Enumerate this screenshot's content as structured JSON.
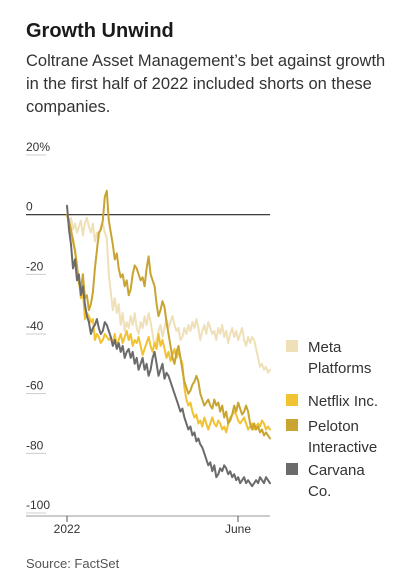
{
  "title": "Growth Unwind",
  "subtitle": "Coltrane Asset Management’s bet against growth in the first half of 2022 included shorts on these companies.",
  "source": "Source: FactSet",
  "chart_data": {
    "type": "line",
    "ylim": [
      -100,
      20
    ],
    "yticks": [
      20,
      0,
      -20,
      -40,
      -60,
      -80,
      -100
    ],
    "ytick_labels": [
      "20%",
      "0",
      "-20",
      "-40",
      "-60",
      "-80",
      "-100"
    ],
    "xtick_labels": [
      "2022",
      "June"
    ],
    "grid": false,
    "legend_position": "right",
    "series": [
      {
        "name": "Meta Platforms",
        "color": "#efe0b8",
        "legend_lines": [
          "Meta",
          "Platforms"
        ],
        "x": [
          0,
          2,
          4,
          6,
          8,
          10,
          12,
          14,
          16,
          18,
          20,
          22,
          24,
          26,
          28,
          30,
          32,
          34,
          36,
          38,
          40,
          42,
          44,
          46,
          48,
          50,
          52,
          54,
          56,
          58,
          60,
          62,
          64,
          66,
          68,
          70,
          72,
          74,
          76,
          78,
          80,
          82,
          84,
          86,
          88,
          90,
          92,
          94,
          96,
          98,
          100,
          102,
          104,
          106,
          108,
          110,
          112,
          114,
          116,
          118,
          120,
          122,
          124,
          126,
          128,
          130,
          132,
          134,
          136,
          138,
          140,
          142,
          144,
          146,
          148,
          150,
          152,
          154,
          156,
          158,
          160,
          162,
          164,
          166,
          168,
          170,
          172,
          174,
          176,
          178,
          180,
          182,
          184,
          186,
          188,
          190,
          192,
          194,
          196,
          198,
          200,
          202,
          204
        ],
        "y": [
          0,
          -2,
          -1,
          -5,
          -3,
          -6,
          -4,
          -2,
          -7,
          -3,
          -1,
          -4,
          -6,
          -3,
          -9,
          -6,
          -8,
          -4,
          -3,
          -6,
          -8,
          -20,
          -26,
          -32,
          -28,
          -33,
          -30,
          -37,
          -33,
          -39,
          -36,
          -38,
          -34,
          -37,
          -33,
          -38,
          -40,
          -36,
          -38,
          -34,
          -37,
          -33,
          -36,
          -40,
          -44,
          -42,
          -39,
          -37,
          -41,
          -38,
          -35,
          -38,
          -36,
          -34,
          -37,
          -39,
          -38,
          -42,
          -41,
          -38,
          -40,
          -37,
          -39,
          -36,
          -38,
          -35,
          -38,
          -42,
          -39,
          -37,
          -40,
          -36,
          -38,
          -40,
          -39,
          -42,
          -38,
          -40,
          -37,
          -41,
          -39,
          -43,
          -40,
          -38,
          -41,
          -39,
          -42,
          -40,
          -38,
          -42,
          -44,
          -41,
          -43,
          -41,
          -42,
          -45,
          -48,
          -51,
          -50,
          -52,
          -51,
          -53,
          -52
        ]
      },
      {
        "name": "Netflix Inc.",
        "color": "#f1c232",
        "legend_lines": [
          "Netflix Inc."
        ],
        "x": [
          0,
          2,
          4,
          6,
          8,
          10,
          12,
          14,
          16,
          18,
          20,
          22,
          24,
          26,
          28,
          30,
          32,
          34,
          36,
          38,
          40,
          42,
          44,
          46,
          48,
          50,
          52,
          54,
          56,
          58,
          60,
          62,
          64,
          66,
          68,
          70,
          72,
          74,
          76,
          78,
          80,
          82,
          84,
          86,
          88,
          90,
          92,
          94,
          96,
          98,
          100,
          102,
          104,
          106,
          108,
          110,
          112,
          114,
          116,
          118,
          120,
          122,
          124,
          126,
          128,
          130,
          132,
          134,
          136,
          138,
          140,
          142,
          144,
          146,
          148,
          150,
          152,
          154,
          156,
          158,
          160,
          162,
          164,
          166,
          168,
          170,
          172,
          174,
          176,
          178,
          180,
          182,
          184,
          186,
          188,
          190,
          192,
          194,
          196,
          198,
          200,
          202,
          204
        ],
        "y": [
          0,
          -3,
          -6,
          -8,
          -12,
          -18,
          -22,
          -28,
          -26,
          -35,
          -33,
          -34,
          -36,
          -35,
          -42,
          -40,
          -41,
          -43,
          -42,
          -40,
          -41,
          -42,
          -41,
          -43,
          -40,
          -44,
          -42,
          -40,
          -43,
          -41,
          -39,
          -42,
          -40,
          -44,
          -42,
          -43,
          -41,
          -44,
          -47,
          -45,
          -43,
          -41,
          -44,
          -46,
          -43,
          -45,
          -40,
          -44,
          -42,
          -45,
          -48,
          -46,
          -49,
          -47,
          -45,
          -48,
          -46,
          -48,
          -50,
          -58,
          -62,
          -64,
          -63,
          -66,
          -68,
          -67,
          -70,
          -69,
          -71,
          -68,
          -70,
          -72,
          -70,
          -68,
          -70,
          -71,
          -69,
          -70,
          -72,
          -71,
          -73,
          -70,
          -68,
          -67,
          -66,
          -67,
          -69,
          -70,
          -69,
          -68,
          -70,
          -72,
          -71,
          -70,
          -72,
          -71,
          -70,
          -71,
          -69,
          -70,
          -72,
          -71,
          -72
        ]
      },
      {
        "name": "Peloton Interactive",
        "color": "#c8a431",
        "legend_lines": [
          "Peloton",
          "Interactive"
        ],
        "x": [
          0,
          2,
          4,
          6,
          8,
          10,
          12,
          14,
          16,
          18,
          20,
          22,
          24,
          26,
          28,
          30,
          32,
          34,
          36,
          38,
          40,
          42,
          44,
          46,
          48,
          50,
          52,
          54,
          56,
          58,
          60,
          62,
          64,
          66,
          68,
          70,
          72,
          74,
          76,
          78,
          80,
          82,
          84,
          86,
          88,
          90,
          92,
          94,
          96,
          98,
          100,
          102,
          104,
          106,
          108,
          110,
          112,
          114,
          116,
          118,
          120,
          122,
          124,
          126,
          128,
          130,
          132,
          134,
          136,
          138,
          140,
          142,
          144,
          146,
          148,
          150,
          152,
          154,
          156,
          158,
          160,
          162,
          164,
          166,
          168,
          170,
          172,
          174,
          176,
          178,
          180,
          182,
          184,
          186,
          188,
          190,
          192,
          194,
          196,
          198,
          200,
          202,
          204
        ],
        "y": [
          0,
          -2,
          -5,
          -9,
          -12,
          -17,
          -23,
          -25,
          -20,
          -28,
          -27,
          -32,
          -30,
          -26,
          -18,
          -12,
          -6,
          -5,
          -2,
          6,
          8,
          -2,
          -6,
          -10,
          -15,
          -13,
          -18,
          -21,
          -20,
          -24,
          -22,
          -27,
          -25,
          -20,
          -17,
          -18,
          -20,
          -22,
          -21,
          -24,
          -18,
          -14,
          -20,
          -22,
          -24,
          -30,
          -34,
          -32,
          -29,
          -31,
          -36,
          -40,
          -44,
          -48,
          -50,
          -46,
          -44,
          -48,
          -52,
          -56,
          -58,
          -60,
          -59,
          -57,
          -56,
          -54,
          -56,
          -60,
          -62,
          -64,
          -63,
          -62,
          -64,
          -65,
          -62,
          -64,
          -63,
          -66,
          -64,
          -68,
          -66,
          -70,
          -69,
          -67,
          -64,
          -66,
          -63,
          -65,
          -67,
          -66,
          -64,
          -66,
          -70,
          -72,
          -70,
          -72,
          -71,
          -73,
          -72,
          -74,
          -73,
          -74,
          -75
        ]
      },
      {
        "name": "Carvana Co.",
        "color": "#6b6b6b",
        "legend_lines": [
          "Carvana",
          "Co."
        ],
        "x": [
          0,
          2,
          4,
          6,
          8,
          10,
          12,
          14,
          16,
          18,
          20,
          22,
          24,
          26,
          28,
          30,
          32,
          34,
          36,
          38,
          40,
          42,
          44,
          46,
          48,
          50,
          52,
          54,
          56,
          58,
          60,
          62,
          64,
          66,
          68,
          70,
          72,
          74,
          76,
          78,
          80,
          82,
          84,
          86,
          88,
          90,
          92,
          94,
          96,
          98,
          100,
          102,
          104,
          106,
          108,
          110,
          112,
          114,
          116,
          118,
          120,
          122,
          124,
          126,
          128,
          130,
          132,
          134,
          136,
          138,
          140,
          142,
          144,
          146,
          148,
          150,
          152,
          154,
          156,
          158,
          160,
          162,
          164,
          166,
          168,
          170,
          172,
          174,
          176,
          178,
          180,
          182,
          184,
          186,
          188,
          190,
          192,
          194,
          196,
          198,
          200,
          202,
          204
        ],
        "y": [
          3,
          -5,
          -10,
          -18,
          -15,
          -22,
          -20,
          -27,
          -24,
          -30,
          -34,
          -36,
          -40,
          -38,
          -37,
          -35,
          -38,
          -40,
          -39,
          -36,
          -37,
          -39,
          -41,
          -44,
          -42,
          -45,
          -43,
          -46,
          -44,
          -48,
          -46,
          -45,
          -48,
          -46,
          -50,
          -48,
          -52,
          -50,
          -48,
          -52,
          -50,
          -54,
          -52,
          -48,
          -46,
          -50,
          -54,
          -52,
          -50,
          -55,
          -53,
          -54,
          -56,
          -58,
          -60,
          -62,
          -64,
          -66,
          -65,
          -68,
          -70,
          -72,
          -71,
          -74,
          -73,
          -76,
          -75,
          -77,
          -78,
          -80,
          -82,
          -84,
          -83,
          -86,
          -84,
          -88,
          -87,
          -85,
          -86,
          -84,
          -85,
          -87,
          -86,
          -88,
          -87,
          -89,
          -88,
          -90,
          -89,
          -88,
          -90,
          -89,
          -90,
          -91,
          -90,
          -89,
          -90,
          -88,
          -89,
          -90,
          -88,
          -89,
          -90
        ]
      }
    ]
  }
}
